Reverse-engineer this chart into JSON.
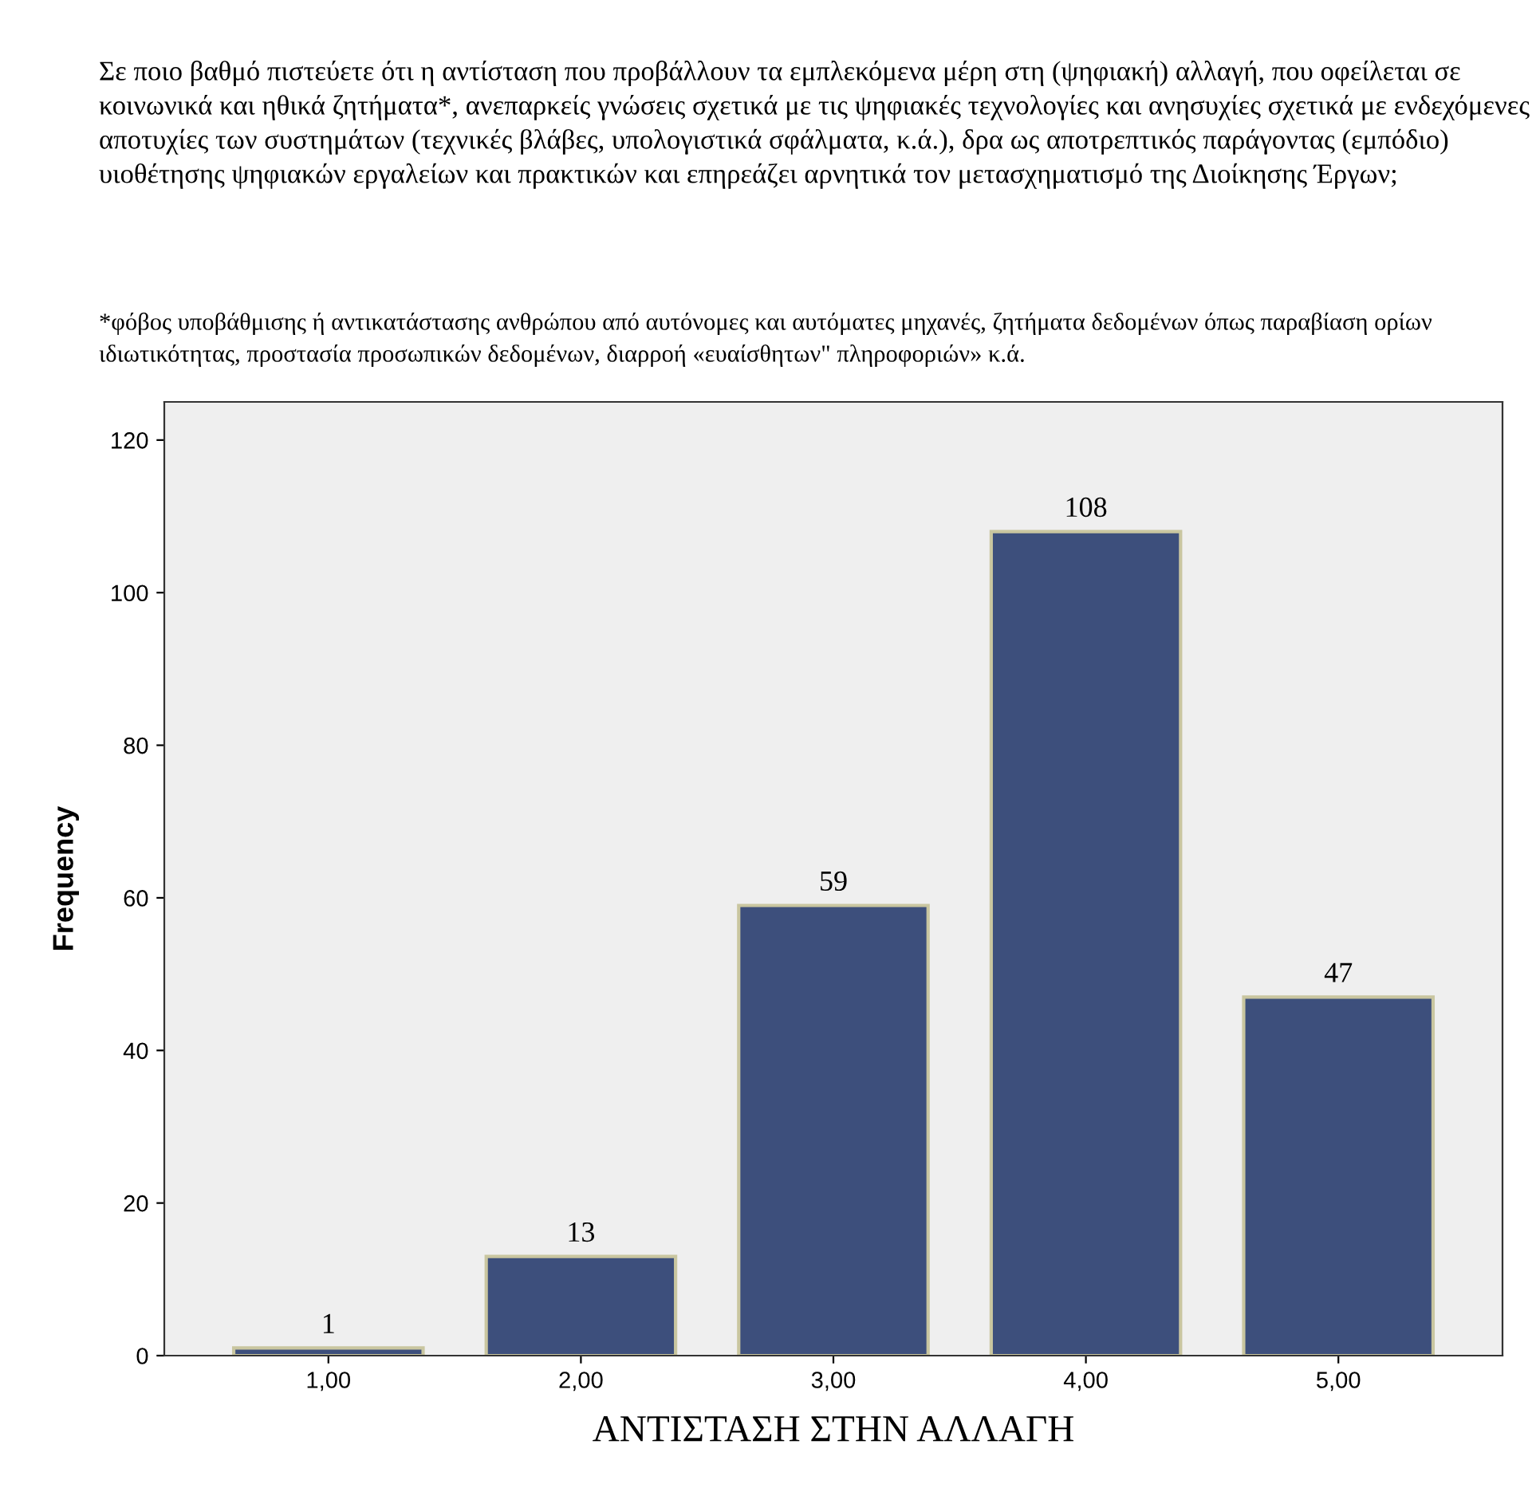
{
  "chart_data": {
    "type": "bar",
    "title": "Σε ποιο βαθμό πιστεύετε ότι η αντίσταση που προβάλλουν τα εμπλεκόμενα μέρη στη (ψηφιακή) αλλαγή, που οφείλεται σε κοινωνικά και ηθικά ζητήματα*, ανεπαρκείς γνώσεις σχετικά με τις ψηφιακές τεχνολογίες και ανησυχίες σχετικά με ενδεχόμενες αποτυχίες των συστημάτων (τεχνικές βλάβες, υπολογιστικά σφάλματα, κ.ά.), δρα ως αποτρεπτικός παράγοντας (εμπόδιο) υιοθέτησης ψηφιακών εργαλείων και πρακτικών και επηρεάζει αρνητικά τον μετασχηματισμό της Διοίκησης Έργων;",
    "subtitle": "*φόβος υποβάθμισης ή αντικατάστασης ανθρώπου από αυτόνομες και αυτόματες μηχανές, ζητήματα δεδομένων όπως παραβίαση ορίων ιδιωτικότητας, προστασία προσωπικών δεδομένων, διαρροή «ευαίσθητων\" πληροφοριών» κ.ά.",
    "xlabel": "ΑΝΤΙΣΤΑΣΗ ΣΤΗΝ ΑΛΛΑΓΗ",
    "ylabel": "Frequency",
    "categories": [
      "1,00",
      "2,00",
      "3,00",
      "4,00",
      "5,00"
    ],
    "values": [
      1,
      13,
      59,
      108,
      47
    ],
    "color": "#3d4f7c",
    "ylim": [
      0,
      125
    ],
    "yticks": [
      0,
      20,
      40,
      60,
      80,
      100,
      120
    ],
    "data_labels": true,
    "grid": false
  }
}
